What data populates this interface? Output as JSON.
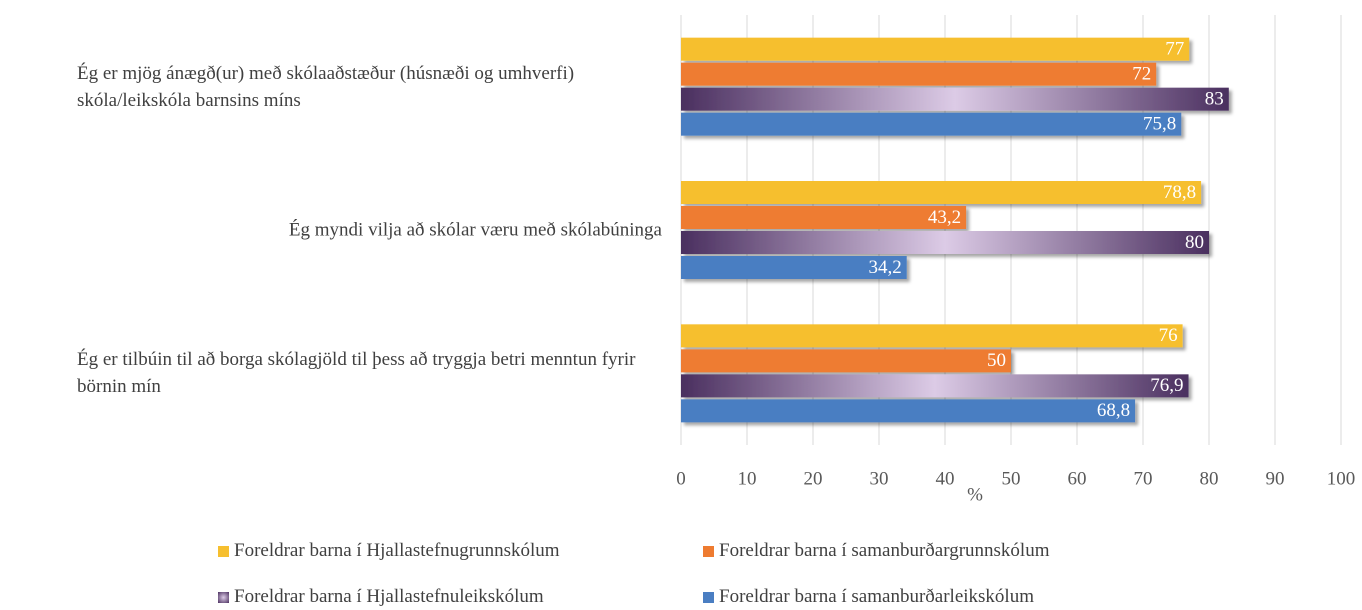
{
  "chart_data": {
    "type": "bar",
    "orientation": "horizontal",
    "categories": [
      "Ég er mjög ánægð(ur) með skólaaðstæður (húsnæði og umhverfi) skóla/leikskóla barnsins míns",
      "Ég myndi vilja að skólar væru með skólabúninga",
      "Ég er tilbúin til að borga skólagjöld til þess að tryggja betri menntun fyrir börnin mín"
    ],
    "series": [
      {
        "name": "Foreldrar barna í Hjallastefnugrunnskólum",
        "color": "#f6bf2f",
        "values": [
          77,
          78.8,
          76
        ],
        "value_labels": [
          "77",
          "78,8",
          "76"
        ]
      },
      {
        "name": "Foreldrar barna í samanburðargrunnskólum",
        "color": "#ee7b30",
        "values": [
          72,
          43.2,
          50
        ],
        "value_labels": [
          "72",
          "43,2",
          "50"
        ]
      },
      {
        "name": "Foreldrar barna í Hjallastefnuleikskólum",
        "color": "#6b4b86",
        "fill_style": "gradient",
        "values": [
          83,
          80,
          76.9
        ],
        "value_labels": [
          "83",
          "80",
          "76,9"
        ]
      },
      {
        "name": "Foreldrar barna í samanburðarleikskólum",
        "color": "#4a7ec2",
        "values": [
          75.8,
          34.2,
          68.8
        ],
        "value_labels": [
          "75,8",
          "34,2",
          "68,8"
        ]
      }
    ],
    "xlabel": "%",
    "xlim": [
      0,
      100
    ],
    "xticks": [
      0,
      10,
      20,
      30,
      40,
      50,
      60,
      70,
      80,
      90,
      100
    ],
    "grid": true,
    "legend": "bottom"
  }
}
